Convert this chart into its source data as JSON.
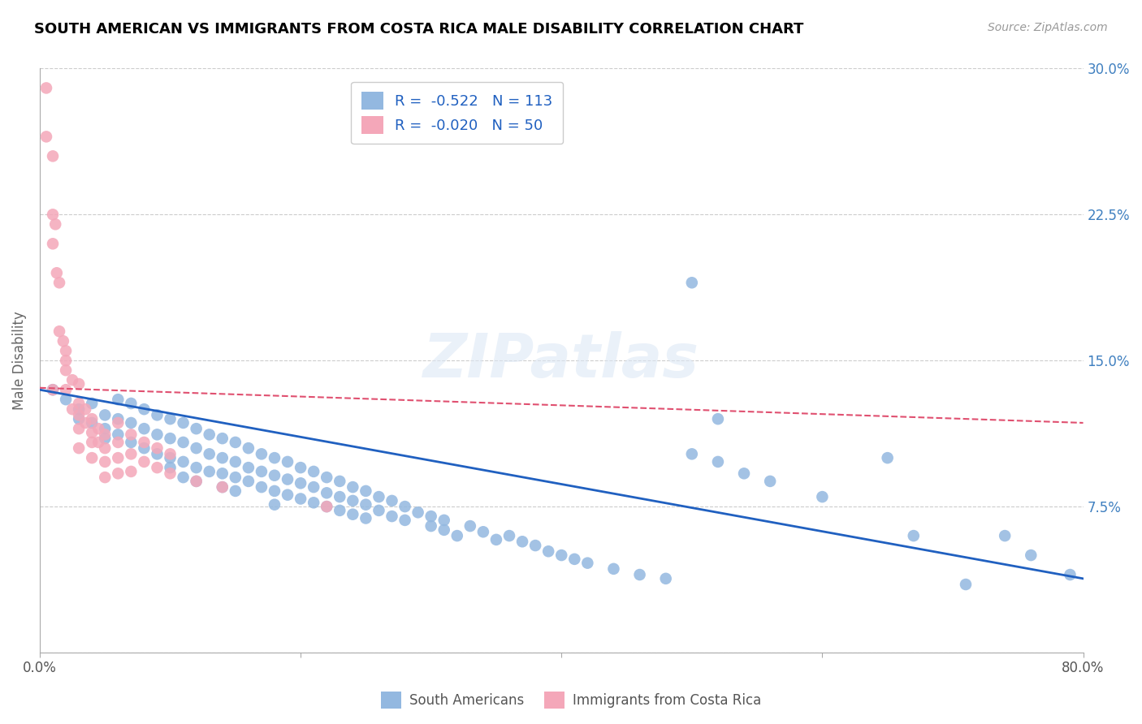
{
  "title": "SOUTH AMERICAN VS IMMIGRANTS FROM COSTA RICA MALE DISABILITY CORRELATION CHART",
  "source": "Source: ZipAtlas.com",
  "ylabel": "Male Disability",
  "x_min": 0.0,
  "x_max": 0.8,
  "y_min": 0.0,
  "y_max": 0.3,
  "blue_color": "#93b8e0",
  "pink_color": "#f4a7b9",
  "blue_line_color": "#2060c0",
  "pink_line_color": "#e05070",
  "legend_blue_label": "R =  -0.522   N = 113",
  "legend_pink_label": "R =  -0.020   N = 50",
  "blue_trend_x": [
    0.0,
    0.8
  ],
  "blue_trend_y": [
    0.135,
    0.038
  ],
  "pink_trend_x": [
    0.0,
    0.8
  ],
  "pink_trend_y": [
    0.136,
    0.118
  ],
  "blue_scatter_x": [
    0.01,
    0.02,
    0.03,
    0.03,
    0.04,
    0.04,
    0.05,
    0.05,
    0.05,
    0.06,
    0.06,
    0.06,
    0.07,
    0.07,
    0.07,
    0.08,
    0.08,
    0.08,
    0.09,
    0.09,
    0.09,
    0.1,
    0.1,
    0.1,
    0.1,
    0.11,
    0.11,
    0.11,
    0.11,
    0.12,
    0.12,
    0.12,
    0.12,
    0.13,
    0.13,
    0.13,
    0.14,
    0.14,
    0.14,
    0.14,
    0.15,
    0.15,
    0.15,
    0.15,
    0.16,
    0.16,
    0.16,
    0.17,
    0.17,
    0.17,
    0.18,
    0.18,
    0.18,
    0.18,
    0.19,
    0.19,
    0.19,
    0.2,
    0.2,
    0.2,
    0.21,
    0.21,
    0.21,
    0.22,
    0.22,
    0.22,
    0.23,
    0.23,
    0.23,
    0.24,
    0.24,
    0.24,
    0.25,
    0.25,
    0.25,
    0.26,
    0.26,
    0.27,
    0.27,
    0.28,
    0.28,
    0.29,
    0.3,
    0.3,
    0.31,
    0.31,
    0.32,
    0.33,
    0.34,
    0.35,
    0.36,
    0.37,
    0.38,
    0.39,
    0.4,
    0.41,
    0.42,
    0.44,
    0.46,
    0.48,
    0.5,
    0.52,
    0.54,
    0.6,
    0.65,
    0.67,
    0.71,
    0.74,
    0.76,
    0.79,
    0.5,
    0.52,
    0.56
  ],
  "blue_scatter_y": [
    0.135,
    0.13,
    0.125,
    0.12,
    0.128,
    0.118,
    0.122,
    0.115,
    0.11,
    0.13,
    0.12,
    0.112,
    0.128,
    0.118,
    0.108,
    0.125,
    0.115,
    0.105,
    0.122,
    0.112,
    0.102,
    0.12,
    0.11,
    0.1,
    0.095,
    0.118,
    0.108,
    0.098,
    0.09,
    0.115,
    0.105,
    0.095,
    0.088,
    0.112,
    0.102,
    0.093,
    0.11,
    0.1,
    0.092,
    0.085,
    0.108,
    0.098,
    0.09,
    0.083,
    0.105,
    0.095,
    0.088,
    0.102,
    0.093,
    0.085,
    0.1,
    0.091,
    0.083,
    0.076,
    0.098,
    0.089,
    0.081,
    0.095,
    0.087,
    0.079,
    0.093,
    0.085,
    0.077,
    0.09,
    0.082,
    0.075,
    0.088,
    0.08,
    0.073,
    0.085,
    0.078,
    0.071,
    0.083,
    0.076,
    0.069,
    0.08,
    0.073,
    0.078,
    0.07,
    0.075,
    0.068,
    0.072,
    0.065,
    0.07,
    0.063,
    0.068,
    0.06,
    0.065,
    0.062,
    0.058,
    0.06,
    0.057,
    0.055,
    0.052,
    0.05,
    0.048,
    0.046,
    0.043,
    0.04,
    0.038,
    0.19,
    0.12,
    0.092,
    0.08,
    0.1,
    0.06,
    0.035,
    0.06,
    0.05,
    0.04,
    0.102,
    0.098,
    0.088
  ],
  "pink_scatter_x": [
    0.005,
    0.005,
    0.01,
    0.01,
    0.01,
    0.012,
    0.013,
    0.015,
    0.015,
    0.018,
    0.02,
    0.02,
    0.02,
    0.02,
    0.025,
    0.025,
    0.03,
    0.03,
    0.03,
    0.03,
    0.03,
    0.035,
    0.035,
    0.04,
    0.04,
    0.04,
    0.04,
    0.045,
    0.045,
    0.05,
    0.05,
    0.05,
    0.05,
    0.06,
    0.06,
    0.06,
    0.06,
    0.07,
    0.07,
    0.07,
    0.08,
    0.08,
    0.09,
    0.09,
    0.1,
    0.1,
    0.12,
    0.14,
    0.22,
    0.01
  ],
  "pink_scatter_y": [
    0.29,
    0.265,
    0.255,
    0.225,
    0.21,
    0.22,
    0.195,
    0.19,
    0.165,
    0.16,
    0.155,
    0.15,
    0.145,
    0.135,
    0.14,
    0.125,
    0.138,
    0.128,
    0.122,
    0.115,
    0.105,
    0.125,
    0.118,
    0.12,
    0.113,
    0.108,
    0.1,
    0.115,
    0.108,
    0.112,
    0.105,
    0.098,
    0.09,
    0.118,
    0.108,
    0.1,
    0.092,
    0.112,
    0.102,
    0.093,
    0.108,
    0.098,
    0.105,
    0.095,
    0.102,
    0.092,
    0.088,
    0.085,
    0.075,
    0.135
  ]
}
